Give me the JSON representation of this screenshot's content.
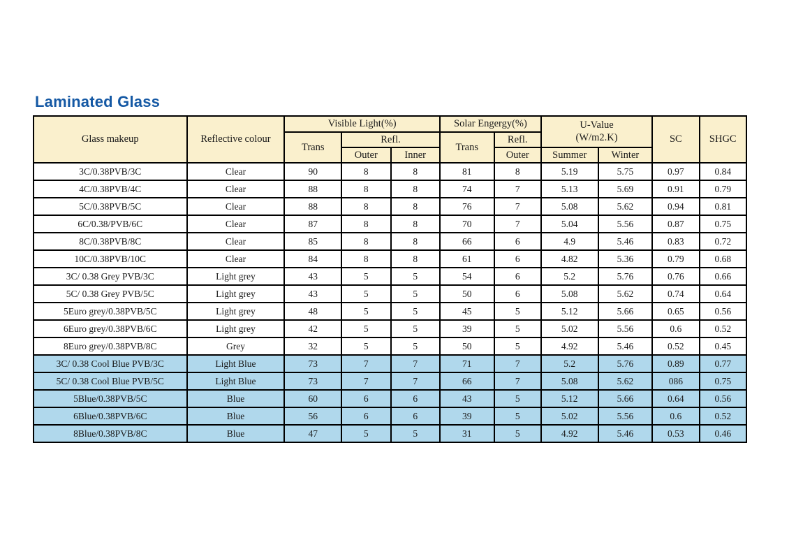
{
  "page_title": "Laminated Glass",
  "colors": {
    "title": "#1458A4",
    "header_bg": "#FAF0CD",
    "row_highlight": "#B0D8EC",
    "border": "#000000",
    "text": "#1a1a1a"
  },
  "table": {
    "headers": {
      "glass_makeup": "Glass makeup",
      "reflective_colour": "Reflective colour",
      "visible_light": "Visible Light(%)",
      "solar_energy": "Solar Engergy(%)",
      "u_value_line1": "U-Value",
      "u_value_line2": "(W/m2.K)",
      "trans": "Trans",
      "refl": "Refl.",
      "outer": "Outer",
      "inner": "Inner",
      "summer": "Summer",
      "winter": "Winter",
      "sc": "SC",
      "shgc": "SHGC"
    },
    "rows": [
      {
        "makeup": "3C/0.38PVB/3C",
        "colour": "Clear",
        "vl_trans": "90",
        "vl_outer": "8",
        "vl_inner": "8",
        "se_trans": "81",
        "se_outer": "8",
        "summer": "5.19",
        "winter": "5.75",
        "sc": "0.97",
        "shgc": "0.84",
        "highlight": false
      },
      {
        "makeup": "4C/0.38PVB/4C",
        "colour": "Clear",
        "vl_trans": "88",
        "vl_outer": "8",
        "vl_inner": "8",
        "se_trans": "74",
        "se_outer": "7",
        "summer": "5.13",
        "winter": "5.69",
        "sc": "0.91",
        "shgc": "0.79",
        "highlight": false
      },
      {
        "makeup": "5C/0.38PVB/5C",
        "colour": "Clear",
        "vl_trans": "88",
        "vl_outer": "8",
        "vl_inner": "8",
        "se_trans": "76",
        "se_outer": "7",
        "summer": "5.08",
        "winter": "5.62",
        "sc": "0.94",
        "shgc": "0.81",
        "highlight": false
      },
      {
        "makeup": "6C/0.38/PVB/6C",
        "colour": "Clear",
        "vl_trans": "87",
        "vl_outer": "8",
        "vl_inner": "8",
        "se_trans": "70",
        "se_outer": "7",
        "summer": "5.04",
        "winter": "5.56",
        "sc": "0.87",
        "shgc": "0.75",
        "highlight": false
      },
      {
        "makeup": "8C/0.38PVB/8C",
        "colour": "Clear",
        "vl_trans": "85",
        "vl_outer": "8",
        "vl_inner": "8",
        "se_trans": "66",
        "se_outer": "6",
        "summer": "4.9",
        "winter": "5.46",
        "sc": "0.83",
        "shgc": "0.72",
        "highlight": false
      },
      {
        "makeup": "10C/0.38PVB/10C",
        "colour": "Clear",
        "vl_trans": "84",
        "vl_outer": "8",
        "vl_inner": "8",
        "se_trans": "61",
        "se_outer": "6",
        "summer": "4.82",
        "winter": "5.36",
        "sc": "0.79",
        "shgc": "0.68",
        "highlight": false
      },
      {
        "makeup": "3C/ 0.38 Grey PVB/3C",
        "colour": "Light grey",
        "vl_trans": "43",
        "vl_outer": "5",
        "vl_inner": "5",
        "se_trans": "54",
        "se_outer": "6",
        "summer": "5.2",
        "winter": "5.76",
        "sc": "0.76",
        "shgc": "0.66",
        "highlight": false
      },
      {
        "makeup": "5C/ 0.38 Grey PVB/5C",
        "colour": "Light grey",
        "vl_trans": "43",
        "vl_outer": "5",
        "vl_inner": "5",
        "se_trans": "50",
        "se_outer": "6",
        "summer": "5.08",
        "winter": "5.62",
        "sc": "0.74",
        "shgc": "0.64",
        "highlight": false
      },
      {
        "makeup": "5Euro grey/0.38PVB/5C",
        "colour": "Light grey",
        "vl_trans": "48",
        "vl_outer": "5",
        "vl_inner": "5",
        "se_trans": "45",
        "se_outer": "5",
        "summer": "5.12",
        "winter": "5.66",
        "sc": "0.65",
        "shgc": "0.56",
        "highlight": false
      },
      {
        "makeup": "6Euro grey/0.38PVB/6C",
        "colour": "Light grey",
        "vl_trans": "42",
        "vl_outer": "5",
        "vl_inner": "5",
        "se_trans": "39",
        "se_outer": "5",
        "summer": "5.02",
        "winter": "5.56",
        "sc": "0.6",
        "shgc": "0.52",
        "highlight": false
      },
      {
        "makeup": "8Euro grey/0.38PVB/8C",
        "colour": "Grey",
        "vl_trans": "32",
        "vl_outer": "5",
        "vl_inner": "5",
        "se_trans": "50",
        "se_outer": "5",
        "summer": "4.92",
        "winter": "5.46",
        "sc": "0.52",
        "shgc": "0.45",
        "highlight": false
      },
      {
        "makeup": "3C/ 0.38 Cool Blue PVB/3C",
        "colour": "Light Blue",
        "vl_trans": "73",
        "vl_outer": "7",
        "vl_inner": "7",
        "se_trans": "71",
        "se_outer": "7",
        "summer": "5.2",
        "winter": "5.76",
        "sc": "0.89",
        "shgc": "0.77",
        "highlight": true
      },
      {
        "makeup": "5C/ 0.38 Cool Blue PVB/5C",
        "colour": "Light Blue",
        "vl_trans": "73",
        "vl_outer": "7",
        "vl_inner": "7",
        "se_trans": "66",
        "se_outer": "7",
        "summer": "5.08",
        "winter": "5.62",
        "sc": "086",
        "shgc": "0.75",
        "highlight": true
      },
      {
        "makeup": "5Blue/0.38PVB/5C",
        "colour": "Blue",
        "vl_trans": "60",
        "vl_outer": "6",
        "vl_inner": "6",
        "se_trans": "43",
        "se_outer": "5",
        "summer": "5.12",
        "winter": "5.66",
        "sc": "0.64",
        "shgc": "0.56",
        "highlight": true
      },
      {
        "makeup": "6Blue/0.38PVB/6C",
        "colour": "Blue",
        "vl_trans": "56",
        "vl_outer": "6",
        "vl_inner": "6",
        "se_trans": "39",
        "se_outer": "5",
        "summer": "5.02",
        "winter": "5.56",
        "sc": "0.6",
        "shgc": "0.52",
        "highlight": true
      },
      {
        "makeup": "8Blue/0.38PVB/8C",
        "colour": "Blue",
        "vl_trans": "47",
        "vl_outer": "5",
        "vl_inner": "5",
        "se_trans": "31",
        "se_outer": "5",
        "summer": "4.92",
        "winter": "5.46",
        "sc": "0.53",
        "shgc": "0.46",
        "highlight": true
      }
    ]
  }
}
